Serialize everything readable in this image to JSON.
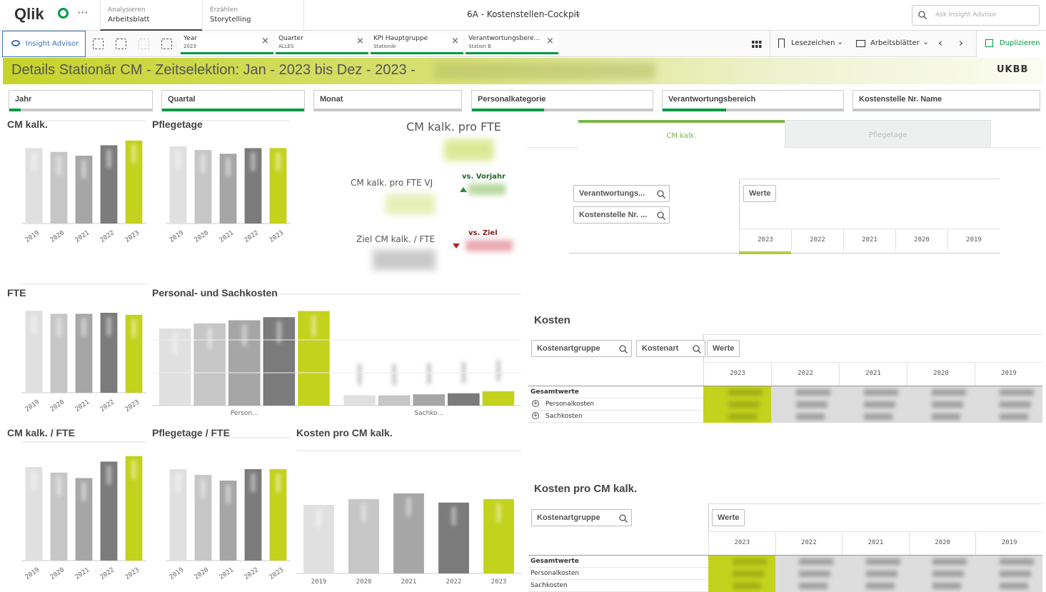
{
  "topbar": {
    "logo": "Qlik",
    "tabs": [
      {
        "small": "Analysieren",
        "label": "Arbeitsblatt"
      },
      {
        "small": "Erzählen",
        "label": "Storytelling"
      }
    ],
    "app_title": "6A - Kostenstellen-Cockpit",
    "search_placeholder": "Ask Insight Advisor"
  },
  "toolbar": {
    "insight": "Insight Advisor",
    "selections": [
      {
        "field": "Year",
        "value": "2023"
      },
      {
        "field": "Quarter",
        "value": "ALLES"
      },
      {
        "field": "KPI Hauptgruppe",
        "value": "Stationär"
      },
      {
        "field": "Verantwortungsbere...",
        "value": "Station B"
      }
    ],
    "bookmarks": "Lesezeichen",
    "sheets": "Arbeitsblätter",
    "duplicate": "Duplizieren"
  },
  "banner": {
    "title": "Details Stationär CM - Zeitselektion: Jan - 2023 bis Dez - 2023 -",
    "logo": "UKBB"
  },
  "filters": [
    "Jahr",
    "Quartal",
    "Monat",
    "Personalkategorie",
    "Verantwortungsbereich",
    "Kostenstelle Nr. Name"
  ],
  "charts": [
    {
      "type": "bar",
      "title": "CM kalk.",
      "categories": [
        "2019",
        "2020",
        "2021",
        "2022",
        "2023"
      ],
      "values": [
        80,
        76,
        72,
        83,
        88
      ],
      "colors": [
        "#e0e0e0",
        "#c6c6c6",
        "#a6a6a6",
        "#7b7b7b",
        "#c3d21c"
      ]
    },
    {
      "type": "bar",
      "title": "Pflegetage",
      "categories": [
        "2019",
        "2020",
        "2021",
        "2022",
        "2023"
      ],
      "values": [
        82,
        78,
        74,
        80,
        80
      ],
      "colors": [
        "#e0e0e0",
        "#c6c6c6",
        "#a6a6a6",
        "#7b7b7b",
        "#c3d21c"
      ]
    },
    {
      "type": "bar",
      "title": "FTE",
      "categories": [
        "2019",
        "2020",
        "2021",
        "2022",
        "2023"
      ],
      "values": [
        82,
        79,
        79,
        80,
        78
      ],
      "colors": [
        "#e0e0e0",
        "#c6c6c6",
        "#a6a6a6",
        "#7b7b7b",
        "#c3d21c"
      ]
    },
    {
      "type": "grouped",
      "title": "Personal- und Sachkosten",
      "categories": [
        "Person...",
        "Sachko..."
      ],
      "series": [
        {
          "color": "#e0e0e0",
          "values": [
            75,
            10
          ]
        },
        {
          "color": "#c6c6c6",
          "values": [
            80,
            10
          ]
        },
        {
          "color": "#a6a6a6",
          "values": [
            83,
            11
          ]
        },
        {
          "color": "#7b7b7b",
          "values": [
            86,
            12
          ]
        },
        {
          "color": "#c3d21c",
          "values": [
            92,
            14
          ]
        }
      ]
    },
    {
      "type": "bar",
      "title": "CM kalk. / FTE",
      "categories": [
        "2019",
        "2020",
        "2021",
        "2022",
        "2023"
      ],
      "values": [
        85,
        80,
        75,
        90,
        95
      ],
      "colors": [
        "#e0e0e0",
        "#c6c6c6",
        "#a6a6a6",
        "#7b7b7b",
        "#c3d21c"
      ]
    },
    {
      "type": "bar",
      "title": "Pflegetage / FTE",
      "categories": [
        "2019",
        "2020",
        "2021",
        "2022",
        "2023"
      ],
      "values": [
        80,
        75,
        70,
        80,
        80
      ],
      "colors": [
        "#e0e0e0",
        "#c6c6c6",
        "#a6a6a6",
        "#7b7b7b",
        "#c3d21c"
      ]
    },
    {
      "type": "bar",
      "title": "Kosten pro CM kalk.",
      "categories": [
        "2019",
        "2020",
        "2021",
        "2022",
        "2023"
      ],
      "values": [
        60,
        65,
        70,
        62,
        65
      ],
      "colors": [
        "#e0e0e0",
        "#c6c6c6",
        "#a6a6a6",
        "#7b7b7b",
        "#c3d21c"
      ]
    }
  ],
  "kpi": {
    "main": "CM kalk. pro FTE",
    "prev": "CM kalk. pro FTE VJ",
    "vs_prev": "vs. Vorjahr",
    "target": "Ziel CM kalk. / FTE",
    "vs_target": "vs. Ziel"
  },
  "tabs": [
    "CM kalk.",
    "Pflegetage"
  ],
  "pivot_main": {
    "dimensions": [
      "Verantwortungs...",
      "Kostenstelle Nr. ..."
    ],
    "measure": "Werte",
    "columns": [
      "2023",
      "2022",
      "2021",
      "2020",
      "2019"
    ]
  },
  "kosten": {
    "title": "Kosten",
    "dimensions": [
      "Kostenartgruppe",
      "Kostenart"
    ],
    "measure": "Werte",
    "columns": [
      "2023",
      "2022",
      "2021",
      "2020",
      "2019"
    ],
    "rows": [
      "Gesamtwerte",
      "Personalkosten",
      "Sachkosten"
    ]
  },
  "kosten_cm": {
    "title": "Kosten pro CM kalk.",
    "dimensions": [
      "Kostenartgruppe"
    ],
    "measure": "Werte",
    "columns": [
      "2023",
      "2022",
      "2021",
      "2020",
      "2019"
    ],
    "rows": [
      "Gesamtwerte",
      "Personalkosten",
      "Sachkosten"
    ]
  }
}
